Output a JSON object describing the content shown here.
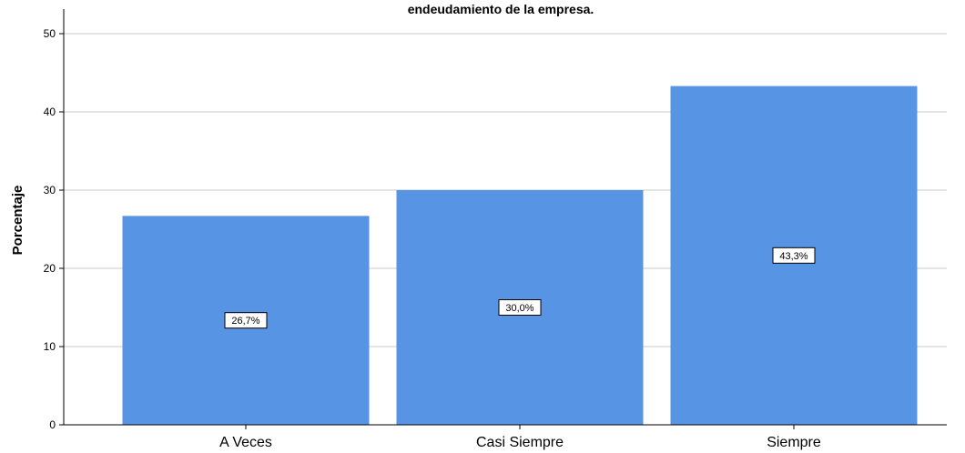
{
  "chart_data": {
    "type": "bar",
    "title": "endeudamiento de la empresa.",
    "xlabel": "",
    "ylabel": "Porcentaje",
    "categories": [
      "A Veces",
      "Casi Siempre",
      "Siempre"
    ],
    "values": [
      26.7,
      30.0,
      43.3
    ],
    "data_labels": [
      "26,7%",
      "30,0%",
      "43,3%"
    ],
    "yticks": [
      0,
      10,
      20,
      30,
      40,
      50
    ],
    "ylim": [
      0,
      50
    ],
    "grid": true,
    "bar_color": "#5794e4",
    "bar_edge_color": "#ffffff",
    "grid_color": "#c8c8c8",
    "axis_color": "#000000"
  }
}
